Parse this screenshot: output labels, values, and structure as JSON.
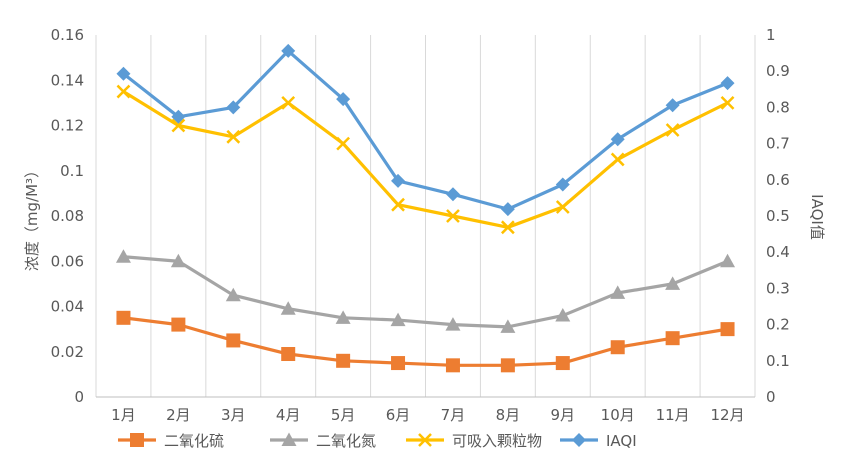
{
  "chart_data": {
    "type": "line",
    "categories": [
      "1月",
      "2月",
      "3月",
      "4月",
      "5月",
      "6月",
      "7月",
      "8月",
      "9月",
      "10月",
      "11月",
      "12月"
    ],
    "ylabel": "浓度（mg/M³）",
    "y2label": "IAQI值",
    "ylim": [
      0,
      0.16
    ],
    "y2lim": [
      0,
      1
    ],
    "yticks": [
      "0",
      "0.02",
      "0.04",
      "0.06",
      "0.08",
      "0.1",
      "0.12",
      "0.14",
      "0.16"
    ],
    "y2ticks": [
      "0",
      "0.1",
      "0.2",
      "0.3",
      "0.4",
      "0.5",
      "0.6",
      "0.7",
      "0.8",
      "0.9",
      "1"
    ],
    "grid": "vertical",
    "legend_position": "bottom",
    "series": [
      {
        "name": "二氧化硫",
        "axis": "left",
        "color": "#ED7D31",
        "marker": "square",
        "values": [
          0.035,
          0.032,
          0.025,
          0.019,
          0.016,
          0.015,
          0.014,
          0.014,
          0.015,
          0.022,
          0.026,
          0.03
        ]
      },
      {
        "name": "二氧化氮",
        "axis": "left",
        "color": "#A5A5A5",
        "marker": "triangle",
        "values": [
          0.062,
          0.06,
          0.045,
          0.039,
          0.035,
          0.034,
          0.032,
          0.031,
          0.036,
          0.046,
          0.05,
          0.06
        ]
      },
      {
        "name": "可吸入颗粒物",
        "axis": "left",
        "color": "#FFC000",
        "marker": "x",
        "values": [
          0.135,
          0.12,
          0.115,
          0.13,
          0.112,
          0.085,
          0.08,
          0.075,
          0.084,
          0.105,
          0.118,
          0.13
        ]
      },
      {
        "name": "IAQI",
        "axis": "right",
        "color": "#5B9BD5",
        "marker": "diamond",
        "values": [
          0.893,
          0.774,
          0.8,
          0.956,
          0.823,
          0.597,
          0.56,
          0.519,
          0.587,
          0.712,
          0.806,
          0.867
        ]
      }
    ]
  }
}
